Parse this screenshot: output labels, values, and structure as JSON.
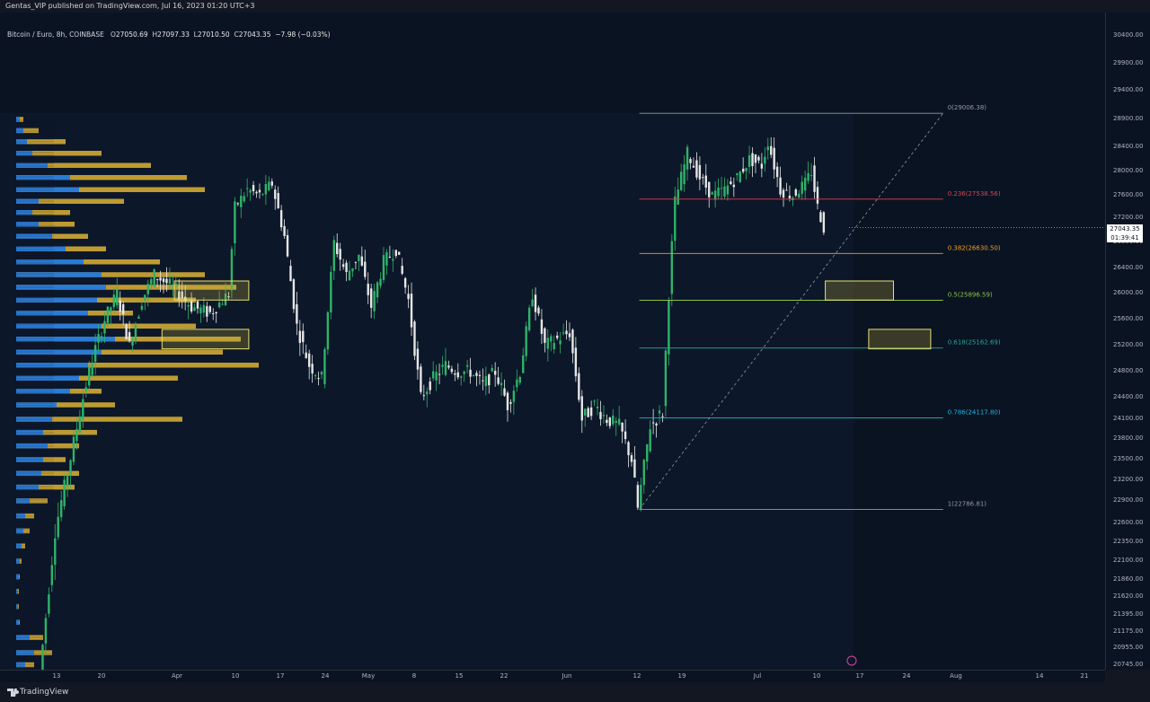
{
  "header": {
    "published": "Gentas_VIP published on TradingView.com, Jul 16, 2023 01:20 UTC+3"
  },
  "legend": {
    "symbol": "Bitcoin / Euro, 8h, COINBASE",
    "o_label": "O",
    "o": "27050.69",
    "h_label": "H",
    "h": "27097.33",
    "l_label": "L",
    "l": "27010.50",
    "c_label": "C",
    "c": "27043.35",
    "change": "−7.98 (−0.03%)"
  },
  "last_price": {
    "value": "27043.35",
    "countdown": "01:39:41"
  },
  "footer": {
    "brand": "TradingView"
  },
  "colors": {
    "bull": "#2fb36a",
    "bear": "#e6e6e6",
    "vp_blue": "#2a7bd4",
    "vp_gold": "#c8a233",
    "fib_0": "#9598a1",
    "fib_236": "#e04050",
    "fib_382": "#f0a020",
    "fib_5": "#8bc34a",
    "fib_618": "#26a69a",
    "fib_786": "#20b6d8",
    "fib_1": "#9598a1",
    "zone": "#e8e070"
  },
  "chart_data": {
    "type": "candlestick",
    "title": "Bitcoin / Euro, 8h, COINBASE",
    "x_ticks": [
      "13",
      "20",
      "Apr",
      "10",
      "17",
      "24",
      "May",
      "8",
      "15",
      "22",
      "Jun",
      "12",
      "19",
      "Jul",
      "10",
      "17",
      "24",
      "Aug",
      "14",
      "21"
    ],
    "y_ticks": [
      30400,
      29900,
      29400,
      28900,
      28400,
      28000,
      27600,
      27200,
      26800,
      26400,
      26000,
      25600,
      25200,
      24800,
      24400,
      24100,
      23800,
      23500,
      23200,
      22900,
      22600,
      22350,
      22100,
      21860,
      21620,
      21395,
      21175,
      20955,
      20745
    ],
    "y_tick_labels": [
      "30400.00",
      "29900.00",
      "29400.00",
      "28900.00",
      "28400.00",
      "28000.00",
      "27600.00",
      "27200.00",
      "26800.00",
      "26400.00",
      "26000.00",
      "25600.00",
      "25200.00",
      "24800.00",
      "24400.00",
      "24100.00",
      "23800.00",
      "23500.00",
      "23200.00",
      "22900.00",
      "22600.00",
      "22350.00",
      "22100.00",
      "21860.00",
      "21620.00",
      "21395.00",
      "21175.00",
      "20955.00",
      "20745.00"
    ],
    "ylim": [
      20700,
      30900
    ],
    "price_path": [
      {
        "x": "Mar 10",
        "y": 20300
      },
      {
        "x": "Mar 11",
        "y": 21000
      },
      {
        "x": "Mar 13",
        "y": 22500
      },
      {
        "x": "Mar 15",
        "y": 23300
      },
      {
        "x": "Mar 17",
        "y": 24200
      },
      {
        "x": "Mar 19",
        "y": 25000
      },
      {
        "x": "Mar 21",
        "y": 25600
      },
      {
        "x": "Mar 23",
        "y": 26000
      },
      {
        "x": "Mar 25",
        "y": 25200
      },
      {
        "x": "Mar 27",
        "y": 25900
      },
      {
        "x": "Mar 29",
        "y": 26300
      },
      {
        "x": "Apr 1",
        "y": 26100
      },
      {
        "x": "Apr 4",
        "y": 25800
      },
      {
        "x": "Apr 7",
        "y": 25700
      },
      {
        "x": "Apr 10",
        "y": 26000
      },
      {
        "x": "Apr 11",
        "y": 27400
      },
      {
        "x": "Apr 13",
        "y": 27700
      },
      {
        "x": "Apr 15",
        "y": 27600
      },
      {
        "x": "Apr 17",
        "y": 27800
      },
      {
        "x": "Apr 19",
        "y": 26900
      },
      {
        "x": "Apr 21",
        "y": 25500
      },
      {
        "x": "Apr 23",
        "y": 24900
      },
      {
        "x": "Apr 25",
        "y": 24700
      },
      {
        "x": "Apr 27",
        "y": 26800
      },
      {
        "x": "Apr 29",
        "y": 26300
      },
      {
        "x": "May 1",
        "y": 26600
      },
      {
        "x": "May 3",
        "y": 25800
      },
      {
        "x": "May 5",
        "y": 26500
      },
      {
        "x": "May 7",
        "y": 26700
      },
      {
        "x": "May 9",
        "y": 25900
      },
      {
        "x": "May 11",
        "y": 24400
      },
      {
        "x": "May 13",
        "y": 24700
      },
      {
        "x": "May 15",
        "y": 24900
      },
      {
        "x": "May 17",
        "y": 24800
      },
      {
        "x": "May 19",
        "y": 24800
      },
      {
        "x": "May 21",
        "y": 24600
      },
      {
        "x": "May 23",
        "y": 24800
      },
      {
        "x": "May 25",
        "y": 24300
      },
      {
        "x": "May 27",
        "y": 24800
      },
      {
        "x": "May 29",
        "y": 26000
      },
      {
        "x": "May 31",
        "y": 25200
      },
      {
        "x": "Jun 2",
        "y": 25300
      },
      {
        "x": "Jun 4",
        "y": 25400
      },
      {
        "x": "Jun 6",
        "y": 24100
      },
      {
        "x": "Jun 8",
        "y": 24300
      },
      {
        "x": "Jun 10",
        "y": 24100
      },
      {
        "x": "Jun 12",
        "y": 24000
      },
      {
        "x": "Jun 14",
        "y": 23500
      },
      {
        "x": "Jun 15",
        "y": 22800
      },
      {
        "x": "Jun 17",
        "y": 24000
      },
      {
        "x": "Jun 19",
        "y": 24200
      },
      {
        "x": "Jun 20",
        "y": 26000
      },
      {
        "x": "Jun 21",
        "y": 27500
      },
      {
        "x": "Jun 23",
        "y": 28300
      },
      {
        "x": "Jun 25",
        "y": 27900
      },
      {
        "x": "Jun 27",
        "y": 27600
      },
      {
        "x": "Jun 29",
        "y": 27700
      },
      {
        "x": "Jul 1",
        "y": 27900
      },
      {
        "x": "Jul 3",
        "y": 28200
      },
      {
        "x": "Jul 5",
        "y": 28100
      },
      {
        "x": "Jul 6",
        "y": 28500
      },
      {
        "x": "Jul 8",
        "y": 27700
      },
      {
        "x": "Jul 10",
        "y": 27600
      },
      {
        "x": "Jul 12",
        "y": 27800
      },
      {
        "x": "Jul 13",
        "y": 28000
      },
      {
        "x": "Jul 14",
        "y": 27400
      },
      {
        "x": "Jul 15",
        "y": 27043
      }
    ],
    "fib_levels": [
      {
        "ratio": "0",
        "price": 29006.38,
        "label": "0(29006.38)",
        "color": "#9598a1"
      },
      {
        "ratio": "0.236",
        "price": 27538.56,
        "label": "0.236(27538.56)",
        "color": "#e04050"
      },
      {
        "ratio": "0.382",
        "price": 26630.5,
        "label": "0.382(26630.50)",
        "color": "#f0a020"
      },
      {
        "ratio": "0.5",
        "price": 25896.59,
        "label": "0.5(25896.59)",
        "color": "#8bc34a"
      },
      {
        "ratio": "0.618",
        "price": 25162.69,
        "label": "0.618(25162.69)",
        "color": "#26a69a"
      },
      {
        "ratio": "0.786",
        "price": 24117.8,
        "label": "0.786(24117.80)",
        "color": "#20b6d8"
      },
      {
        "ratio": "1",
        "price": 22786.81,
        "label": "1(22786.81)",
        "color": "#9598a1"
      }
    ],
    "fib_range": {
      "start": "Jun 15",
      "end": "Aug 3"
    },
    "zones": [
      {
        "x1": "Apr 1",
        "x2": "Apr 13",
        "y1": 25900,
        "y2": 26200
      },
      {
        "x1": "Mar 30",
        "x2": "Apr 13",
        "y1": 25150,
        "y2": 25450
      },
      {
        "x1": "Jul 15",
        "x2": "Jul 26",
        "y1": 25900,
        "y2": 26200
      },
      {
        "x1": "Jul 22",
        "x2": "Aug 1",
        "y1": 25150,
        "y2": 25450
      }
    ],
    "volume_profile": [
      {
        "price": 28900,
        "blue": 4,
        "gold": 8
      },
      {
        "price": 28700,
        "blue": 8,
        "gold": 25
      },
      {
        "price": 28500,
        "blue": 12,
        "gold": 55
      },
      {
        "price": 28300,
        "blue": 18,
        "gold": 95
      },
      {
        "price": 28100,
        "blue": 35,
        "gold": 150
      },
      {
        "price": 27900,
        "blue": 60,
        "gold": 190
      },
      {
        "price": 27700,
        "blue": 70,
        "gold": 210
      },
      {
        "price": 27500,
        "blue": 25,
        "gold": 120
      },
      {
        "price": 27300,
        "blue": 18,
        "gold": 60
      },
      {
        "price": 27100,
        "blue": 25,
        "gold": 65
      },
      {
        "price": 26900,
        "blue": 40,
        "gold": 80
      },
      {
        "price": 26700,
        "blue": 55,
        "gold": 100
      },
      {
        "price": 26500,
        "blue": 75,
        "gold": 160
      },
      {
        "price": 26300,
        "blue": 95,
        "gold": 210
      },
      {
        "price": 26100,
        "blue": 100,
        "gold": 245
      },
      {
        "price": 25900,
        "blue": 90,
        "gold": 200
      },
      {
        "price": 25700,
        "blue": 80,
        "gold": 130
      },
      {
        "price": 25500,
        "blue": 95,
        "gold": 200
      },
      {
        "price": 25300,
        "blue": 110,
        "gold": 250
      },
      {
        "price": 25100,
        "blue": 95,
        "gold": 230
      },
      {
        "price": 24900,
        "blue": 80,
        "gold": 270
      },
      {
        "price": 24700,
        "blue": 70,
        "gold": 180
      },
      {
        "price": 24500,
        "blue": 60,
        "gold": 95
      },
      {
        "price": 24300,
        "blue": 45,
        "gold": 110
      },
      {
        "price": 24100,
        "blue": 40,
        "gold": 185
      },
      {
        "price": 23900,
        "blue": 30,
        "gold": 90
      },
      {
        "price": 23700,
        "blue": 35,
        "gold": 70
      },
      {
        "price": 23500,
        "blue": 30,
        "gold": 55
      },
      {
        "price": 23300,
        "blue": 28,
        "gold": 70
      },
      {
        "price": 23100,
        "blue": 25,
        "gold": 65
      },
      {
        "price": 22900,
        "blue": 15,
        "gold": 35
      },
      {
        "price": 22700,
        "blue": 10,
        "gold": 20
      },
      {
        "price": 22500,
        "blue": 8,
        "gold": 15
      },
      {
        "price": 22300,
        "blue": 6,
        "gold": 10
      },
      {
        "price": 22100,
        "blue": 4,
        "gold": 6
      },
      {
        "price": 21900,
        "blue": 3,
        "gold": 4
      },
      {
        "price": 21700,
        "blue": 2,
        "gold": 3
      },
      {
        "price": 21500,
        "blue": 2,
        "gold": 3
      },
      {
        "price": 21300,
        "blue": 3,
        "gold": 4
      },
      {
        "price": 21100,
        "blue": 15,
        "gold": 30
      },
      {
        "price": 20900,
        "blue": 20,
        "gold": 40
      },
      {
        "price": 20750,
        "blue": 10,
        "gold": 20
      }
    ]
  }
}
